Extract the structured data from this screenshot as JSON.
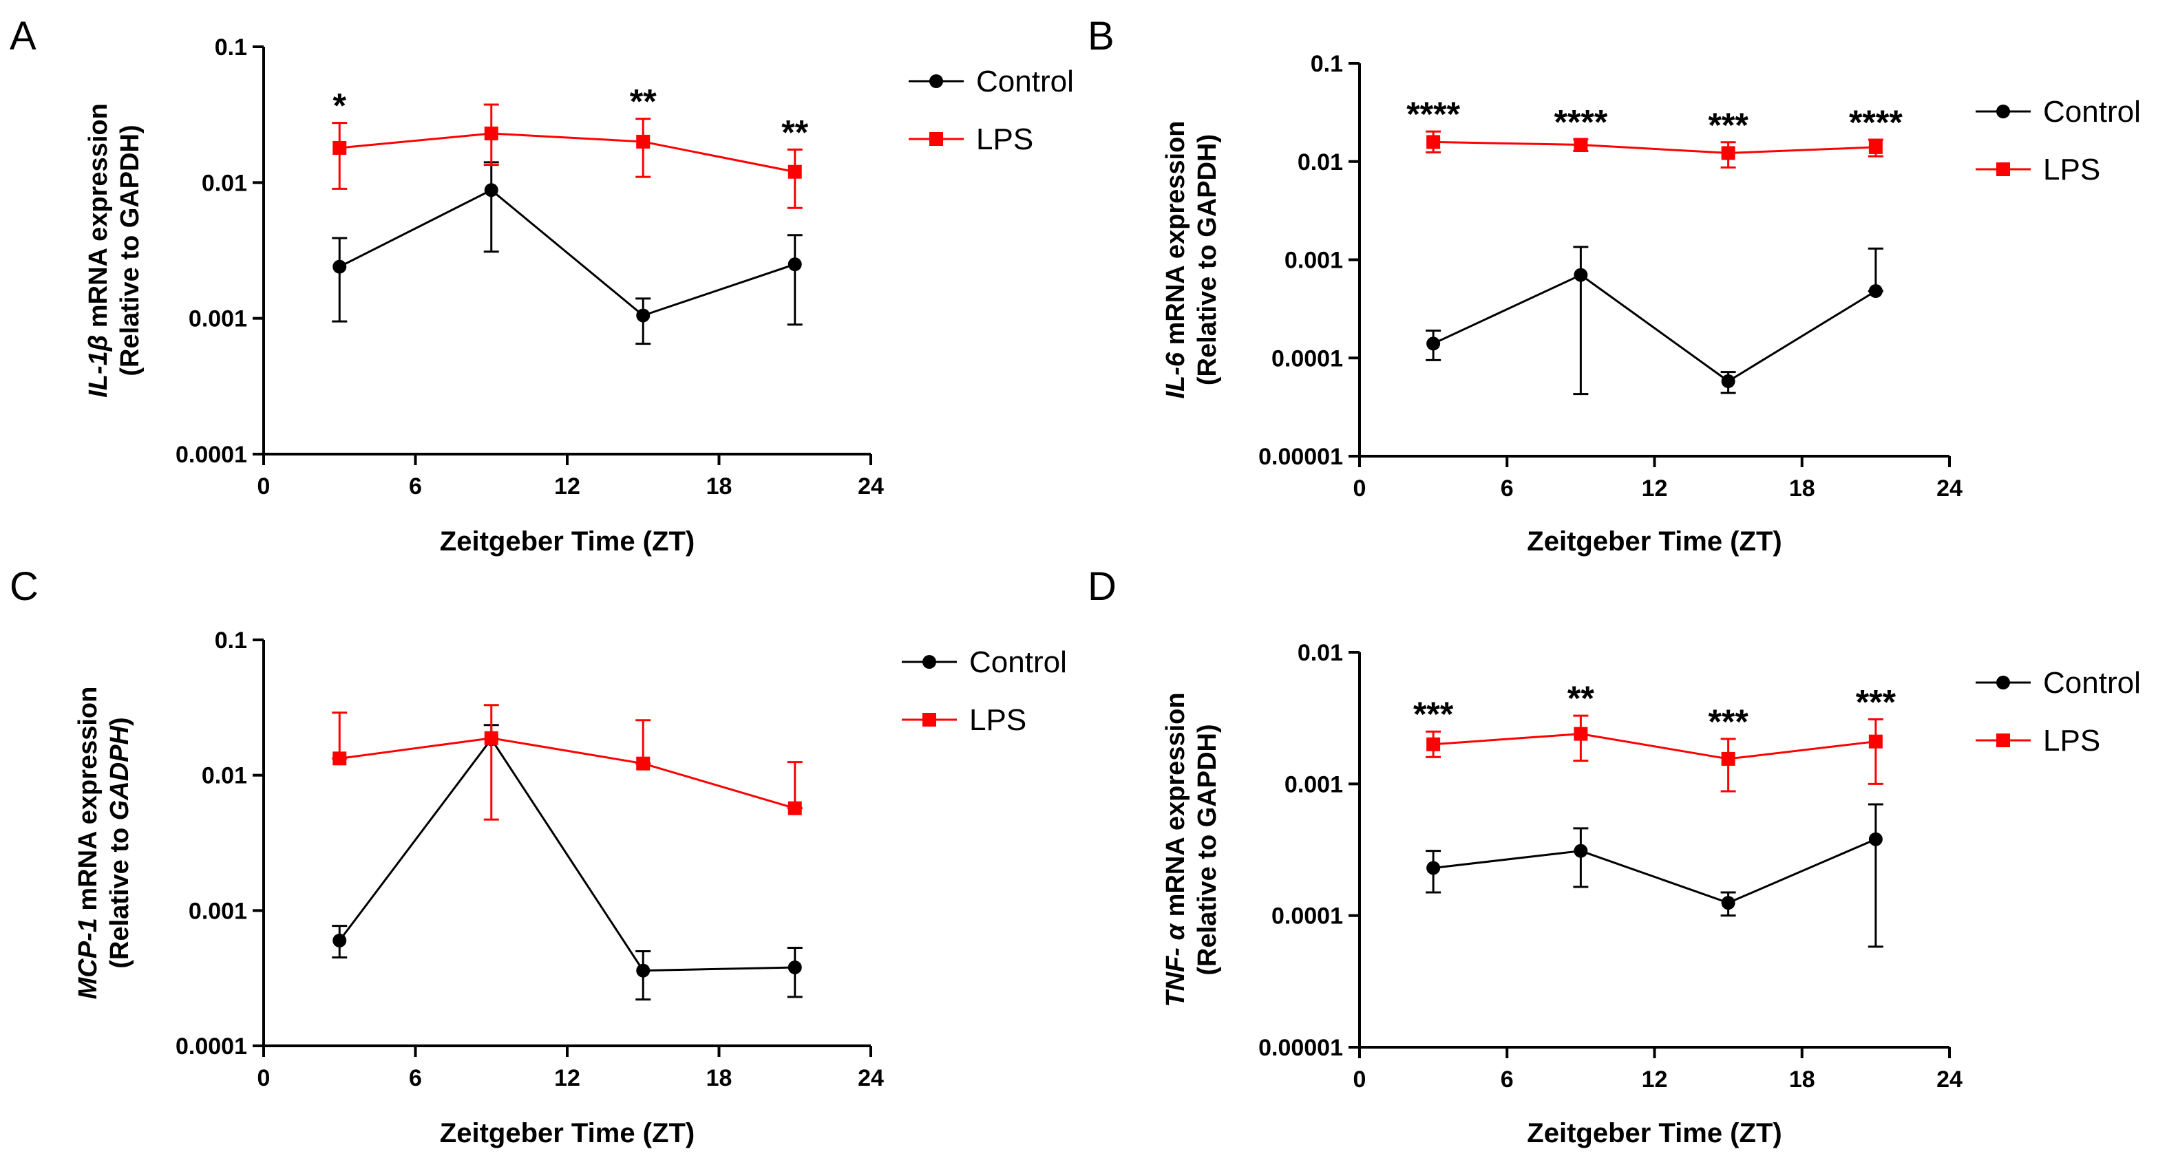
{
  "chart_data": [
    {
      "type": "line",
      "panel": "A",
      "ylabel_line1_italic": "IL-1β",
      "ylabel_line1_rest": " mRNA expression",
      "ylabel_line2_prefix": "(Relative to ",
      "ylabel_line2_italic": "",
      "ylabel_line2_plain": "GAPDH",
      "ylabel_line2_suffix": ")",
      "xlabel": "Zeitgeber Time (ZT)",
      "yscale": "log",
      "ylim": [
        0.0001,
        0.1
      ],
      "yticks": [
        "0.0001",
        "0.001",
        "0.01",
        "0.1"
      ],
      "xlim": [
        0,
        24
      ],
      "xticks": [
        "0",
        "6",
        "12",
        "18",
        "24"
      ],
      "legend": [
        "Control",
        "LPS"
      ],
      "x": [
        3,
        9,
        15,
        21
      ],
      "series": [
        {
          "name": "Control",
          "color": "#000000",
          "marker": "circle",
          "values": [
            0.0024,
            0.0088,
            0.00105,
            0.0025
          ],
          "err_low": [
            0.00095,
            0.0031,
            0.00065,
            0.0009
          ],
          "err_high": [
            0.0039,
            0.0141,
            0.0014,
            0.0041
          ]
        },
        {
          "name": "LPS",
          "color": "#ff0000",
          "marker": "square",
          "values": [
            0.018,
            0.023,
            0.02,
            0.012
          ],
          "err_low": [
            0.009,
            0.0135,
            0.011,
            0.0065
          ],
          "err_high": [
            0.0275,
            0.0375,
            0.0295,
            0.0175
          ]
        }
      ],
      "annotations": [
        "*",
        "",
        "**",
        "**"
      ]
    },
    {
      "type": "line",
      "panel": "B",
      "ylabel_line1_italic": "IL-6",
      "ylabel_line1_rest": " mRNA expression",
      "ylabel_line2_prefix": "(Relative to ",
      "ylabel_line2_italic": "",
      "ylabel_line2_plain": "GAPDH",
      "ylabel_line2_suffix": ")",
      "xlabel": "Zeitgeber Time (ZT)",
      "yscale": "log",
      "ylim": [
        1e-05,
        0.1
      ],
      "yticks": [
        "0.00001",
        "0.0001",
        "0.001",
        "0.01",
        "0.1"
      ],
      "xlim": [
        0,
        24
      ],
      "xticks": [
        "0",
        "6",
        "12",
        "18",
        "24"
      ],
      "legend": [
        "Control",
        "LPS"
      ],
      "x": [
        3,
        9,
        15,
        21
      ],
      "series": [
        {
          "name": "Control",
          "color": "#000000",
          "marker": "circle",
          "values": [
            0.00014,
            0.0007,
            5.8e-05,
            0.00048
          ],
          "err_low": [
            9.5e-05,
            4.3e-05,
            4.4e-05,
            0.00048
          ],
          "err_high": [
            0.00019,
            0.00135,
            7.2e-05,
            0.0013
          ]
        },
        {
          "name": "LPS",
          "color": "#ff0000",
          "marker": "square",
          "values": [
            0.0158,
            0.0148,
            0.0122,
            0.014
          ],
          "err_low": [
            0.0124,
            0.0128,
            0.0087,
            0.0113
          ],
          "err_high": [
            0.0202,
            0.0168,
            0.0157,
            0.0167
          ]
        }
      ],
      "annotations": [
        "****",
        "****",
        "***",
        "****"
      ]
    },
    {
      "type": "line",
      "panel": "C",
      "ylabel_line1_italic": "MCP-1",
      "ylabel_line1_rest": " mRNA expression",
      "ylabel_line2_prefix": "(Relative to ",
      "ylabel_line2_italic": "GADPH",
      "ylabel_line2_plain": "",
      "ylabel_line2_suffix": ")",
      "xlabel": "Zeitgeber Time (ZT)",
      "yscale": "log",
      "ylim": [
        0.0001,
        0.1
      ],
      "yticks": [
        "0.0001",
        "0.001",
        "0.01",
        "0.1"
      ],
      "xlim": [
        0,
        24
      ],
      "xticks": [
        "0",
        "6",
        "12",
        "18",
        "24"
      ],
      "legend": [
        "Control",
        "LPS"
      ],
      "x": [
        3,
        9,
        15,
        21
      ],
      "series": [
        {
          "name": "Control",
          "color": "#000000",
          "marker": "circle",
          "values": [
            0.0006,
            0.0185,
            0.00036,
            0.00038
          ],
          "err_low": [
            0.00045,
            0.0185,
            0.00022,
            0.00023
          ],
          "err_high": [
            0.00077,
            0.0235,
            0.0005,
            0.00053
          ]
        },
        {
          "name": "LPS",
          "color": "#ff0000",
          "marker": "square",
          "values": [
            0.0133,
            0.0188,
            0.0122,
            0.0057
          ],
          "err_low": [
            0.0133,
            0.0047,
            0.0122,
            0.0057
          ],
          "err_high": [
            0.029,
            0.033,
            0.0255,
            0.0125
          ]
        }
      ],
      "annotations": [
        "",
        "",
        "",
        ""
      ]
    },
    {
      "type": "line",
      "panel": "D",
      "ylabel_line1_italic": "TNF- α",
      "ylabel_line1_rest": " mRNA expression",
      "ylabel_line2_prefix": "(Relative to ",
      "ylabel_line2_italic": "",
      "ylabel_line2_plain": "GAPDH",
      "ylabel_line2_suffix": ")",
      "xlabel": "Zeitgeber Time (ZT)",
      "yscale": "log",
      "ylim": [
        1e-05,
        0.01
      ],
      "yticks": [
        "0.00001",
        "0.0001",
        "0.001",
        "0.01"
      ],
      "xlim": [
        0,
        24
      ],
      "xticks": [
        "0",
        "6",
        "12",
        "18",
        "24"
      ],
      "legend": [
        "Control",
        "LPS"
      ],
      "x": [
        3,
        9,
        15,
        21
      ],
      "series": [
        {
          "name": "Control",
          "color": "#000000",
          "marker": "circle",
          "values": [
            0.00023,
            0.00031,
            0.000125,
            0.00038
          ],
          "err_low": [
            0.00015,
            0.000165,
            0.0001,
            5.8e-05
          ],
          "err_high": [
            0.00031,
            0.00046,
            0.00015,
            0.0007
          ]
        },
        {
          "name": "LPS",
          "color": "#ff0000",
          "marker": "square",
          "values": [
            0.002,
            0.0024,
            0.00155,
            0.0021
          ],
          "err_low": [
            0.0016,
            0.0015,
            0.00088,
            0.001
          ],
          "err_high": [
            0.0025,
            0.0033,
            0.0022,
            0.0031
          ]
        }
      ],
      "annotations": [
        "***",
        "**",
        "***",
        "***"
      ]
    }
  ]
}
